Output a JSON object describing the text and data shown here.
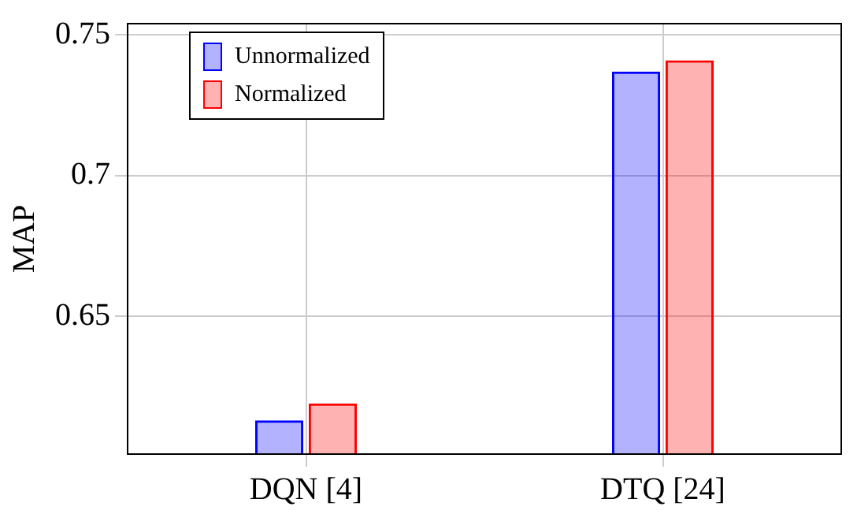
{
  "chart_data": {
    "type": "bar",
    "ylabel": "MAP",
    "categories": [
      "DQN [4]",
      "DTQ [24]"
    ],
    "series": [
      {
        "name": "Unnormalized",
        "color": "#0000ff",
        "values": [
          0.613,
          0.737
        ]
      },
      {
        "name": "Normalized",
        "color": "#ff0000",
        "values": [
          0.619,
          0.741
        ]
      }
    ],
    "ylim": [
      0.601,
      0.754
    ],
    "yticks": [
      0.65,
      0.7,
      0.75
    ],
    "grid": true,
    "legend": "top left"
  }
}
